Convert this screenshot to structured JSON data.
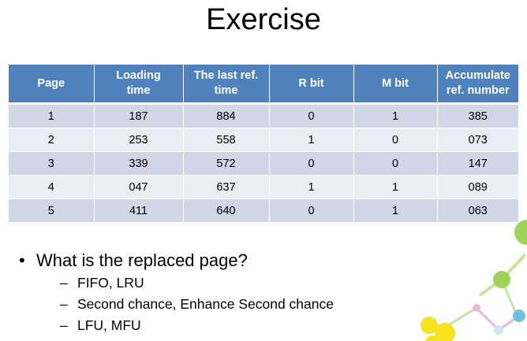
{
  "title": "Exercise",
  "table": {
    "headers": [
      {
        "line1": "Page",
        "line2": ""
      },
      {
        "line1": "Loading",
        "line2": "time"
      },
      {
        "line1": "The last ref.",
        "line2": "time"
      },
      {
        "line1": "R bit",
        "line2": ""
      },
      {
        "line1": "M bit",
        "line2": ""
      },
      {
        "line1": "Accumulate",
        "line2": "ref. number"
      }
    ],
    "rows": [
      [
        "1",
        "187",
        "884",
        "0",
        "1",
        "385"
      ],
      [
        "2",
        "253",
        "558",
        "1",
        "0",
        "073"
      ],
      [
        "3",
        "339",
        "572",
        "0",
        "0",
        "147"
      ],
      [
        "4",
        "047",
        "637",
        "1",
        "1",
        "089"
      ],
      [
        "5",
        "411",
        "640",
        "0",
        "1",
        "063"
      ]
    ]
  },
  "question": {
    "bullet": "•",
    "text": "What is the replaced page?",
    "dash": "–",
    "items": [
      "FIFO, LRU",
      "Second chance, Enhance Second chance",
      "LFU, MFU"
    ]
  },
  "colors": {
    "header": "#4f81bd",
    "row_odd": "#d0d8e8",
    "row_even": "#e9edf4"
  }
}
